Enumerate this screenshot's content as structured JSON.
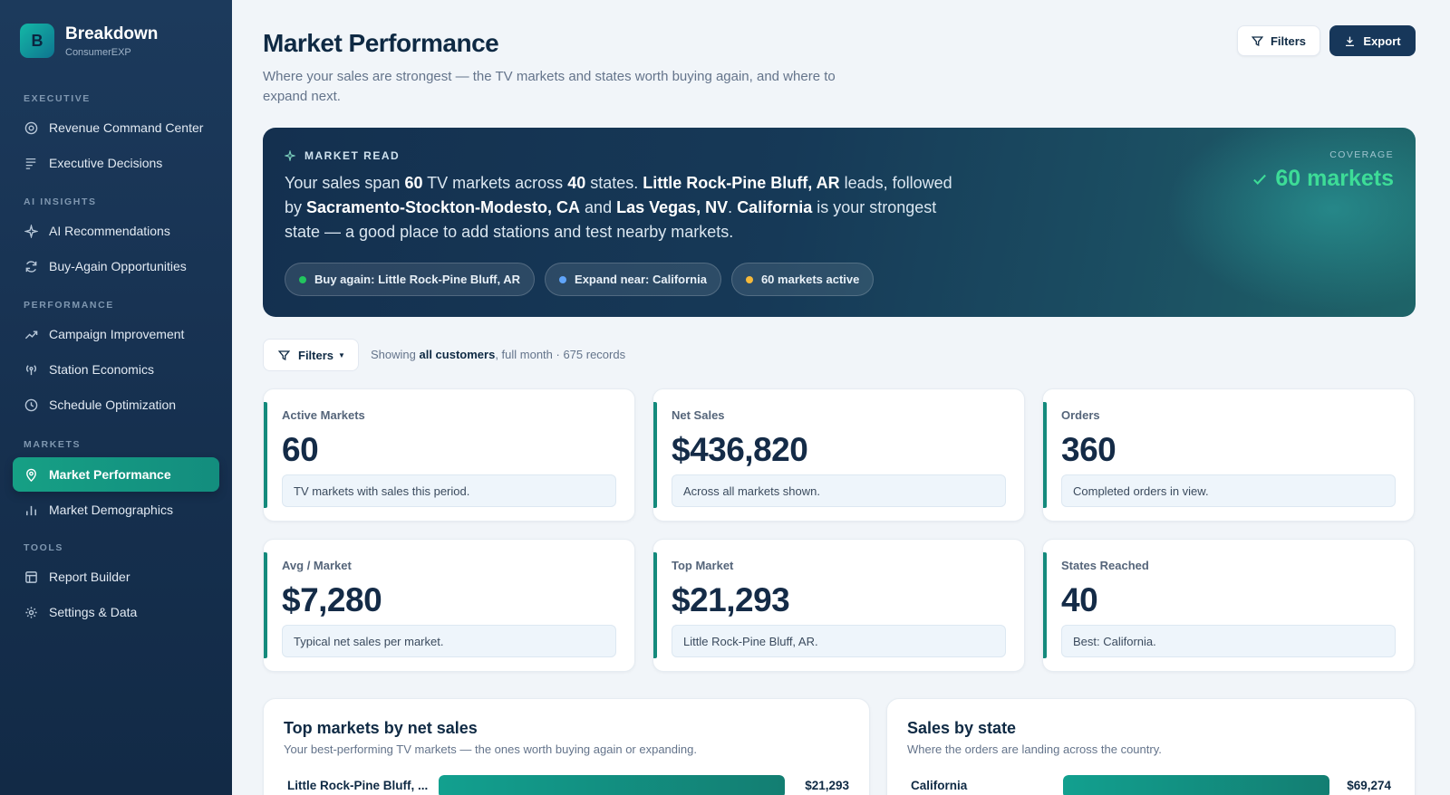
{
  "brand": {
    "initial": "B",
    "name": "Breakdown",
    "subtitle": "ConsumerEXP"
  },
  "sidebar": {
    "sections": [
      {
        "label": "EXECUTIVE",
        "items": [
          {
            "label": "Revenue Command Center",
            "icon": "target-icon"
          },
          {
            "label": "Executive Decisions",
            "icon": "list-icon"
          }
        ]
      },
      {
        "label": "AI INSIGHTS",
        "items": [
          {
            "label": "AI Recommendations",
            "icon": "sparkle-icon"
          },
          {
            "label": "Buy-Again Opportunities",
            "icon": "refresh-icon"
          }
        ]
      },
      {
        "label": "PERFORMANCE",
        "items": [
          {
            "label": "Campaign Improvement",
            "icon": "trend-icon"
          },
          {
            "label": "Station Economics",
            "icon": "broadcast-icon"
          },
          {
            "label": "Schedule Optimization",
            "icon": "clock-icon"
          }
        ]
      },
      {
        "label": "MARKETS",
        "items": [
          {
            "label": "Market Performance",
            "icon": "map-pin-icon",
            "active": true
          },
          {
            "label": "Market Demographics",
            "icon": "bar-chart-icon"
          }
        ]
      },
      {
        "label": "TOOLS",
        "items": [
          {
            "label": "Report Builder",
            "icon": "table-icon"
          },
          {
            "label": "Settings & Data",
            "icon": "gear-icon"
          }
        ]
      }
    ]
  },
  "header": {
    "title": "Market Performance",
    "subtitle": "Where your sales are strongest — the TV markets and states worth buying again, and where to expand next.",
    "filters_label": "Filters",
    "export_label": "Export"
  },
  "hero": {
    "kicker": "MARKET READ",
    "text": {
      "p1": "Your sales span ",
      "markets": "60",
      "p2": " TV markets across ",
      "states": "40",
      "p3": " states. ",
      "lead": "Little Rock-Pine Bluff, AR",
      "p4": " leads, followed by ",
      "second": "Sacramento-Stockton-Modesto, CA",
      "p5": " and ",
      "third": "Las Vegas, NV",
      "p6": ". ",
      "state": "California",
      "p7": " is your strongest state — a good place to add stations and test nearby markets."
    },
    "coverage_label": "COVERAGE",
    "coverage_value": "60 markets",
    "chips": [
      {
        "label": "Buy again: Little Rock-Pine Bluff, AR",
        "color": "#22c55e"
      },
      {
        "label": "Expand near: California",
        "color": "#60a5fa"
      },
      {
        "label": "60 markets active",
        "color": "#f5b93a"
      }
    ]
  },
  "filter_bar": {
    "button": "Filters",
    "showing_prefix": "Showing ",
    "showing_bold": "all customers",
    "showing_suffix": ", full month · 675 records"
  },
  "kpis": [
    {
      "label": "Active Markets",
      "value": "60",
      "note": "TV markets with sales this period."
    },
    {
      "label": "Net Sales",
      "value": "$436,820",
      "note": "Across all markets shown."
    },
    {
      "label": "Orders",
      "value": "360",
      "note": "Completed orders in view."
    },
    {
      "label": "Avg / Market",
      "value": "$7,280",
      "note": "Typical net sales per market."
    },
    {
      "label": "Top Market",
      "value": "$21,293",
      "note": "Little Rock-Pine Bluff, AR."
    },
    {
      "label": "States Reached",
      "value": "40",
      "note": "Best: California."
    }
  ],
  "panels": {
    "top_markets": {
      "title": "Top markets by net sales",
      "subtitle": "Your best-performing TV markets — the ones worth buying again or expanding.",
      "rows": [
        {
          "label": "Little Rock-Pine Bluff, ...",
          "value": "$21,293",
          "fill": 1.0
        }
      ]
    },
    "by_state": {
      "title": "Sales by state",
      "subtitle": "Where the orders are landing across the country.",
      "rows": [
        {
          "label": "California",
          "value": "$69,274",
          "fill": 1.0
        }
      ]
    }
  }
}
